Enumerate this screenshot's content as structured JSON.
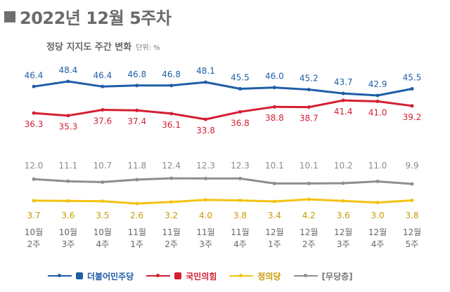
{
  "title": "2022년 12월 5주차",
  "subtitle": "정당 지지도 주간 변화",
  "unit": "단위: %",
  "colors": {
    "blue": "#1f5ea8",
    "red": "#d41f33",
    "gray": "#8e8e8e",
    "yellow": "#f3c313"
  },
  "legend": [
    {
      "label": "더불어민주당",
      "color": "#1f5ea8",
      "logo": "square-logo"
    },
    {
      "label": "국민의힘",
      "color": "#d41f33",
      "logo": "red-flag-logo"
    },
    {
      "label": "정의당",
      "color": "#f3c313",
      "logo": "text-logo"
    },
    {
      "label": "[무당층]",
      "color": "#8e8e8e",
      "logo": "none"
    }
  ],
  "chart_data": {
    "type": "line",
    "categories": [
      "10월 2주",
      "10월 3주",
      "10월 4주",
      "11월 1주",
      "11월 2주",
      "11월 3주",
      "11월 4주",
      "12월 1주",
      "12월 2주",
      "12월 3주",
      "12월 4주",
      "12월 5주"
    ],
    "series": [
      {
        "name": "더불어민주당",
        "color": "#1f5ea8",
        "values": [
          46.4,
          48.4,
          46.4,
          46.8,
          46.8,
          48.1,
          45.5,
          46.0,
          45.2,
          43.7,
          42.9,
          45.5
        ]
      },
      {
        "name": "국민의힘",
        "color": "#d41f33",
        "values": [
          36.3,
          35.3,
          37.6,
          37.4,
          36.1,
          33.8,
          36.8,
          38.8,
          38.7,
          41.4,
          41.0,
          39.2
        ]
      },
      {
        "name": "[무당층]",
        "color": "#8e8e8e",
        "values": [
          12.0,
          11.1,
          10.7,
          11.8,
          12.4,
          12.3,
          12.3,
          10.1,
          10.1,
          10.2,
          11.0,
          9.9
        ]
      },
      {
        "name": "정의당",
        "color": "#f3c313",
        "values": [
          3.7,
          3.6,
          3.5,
          2.6,
          3.2,
          4.0,
          3.8,
          3.4,
          4.2,
          3.6,
          3.0,
          3.8
        ]
      }
    ]
  }
}
